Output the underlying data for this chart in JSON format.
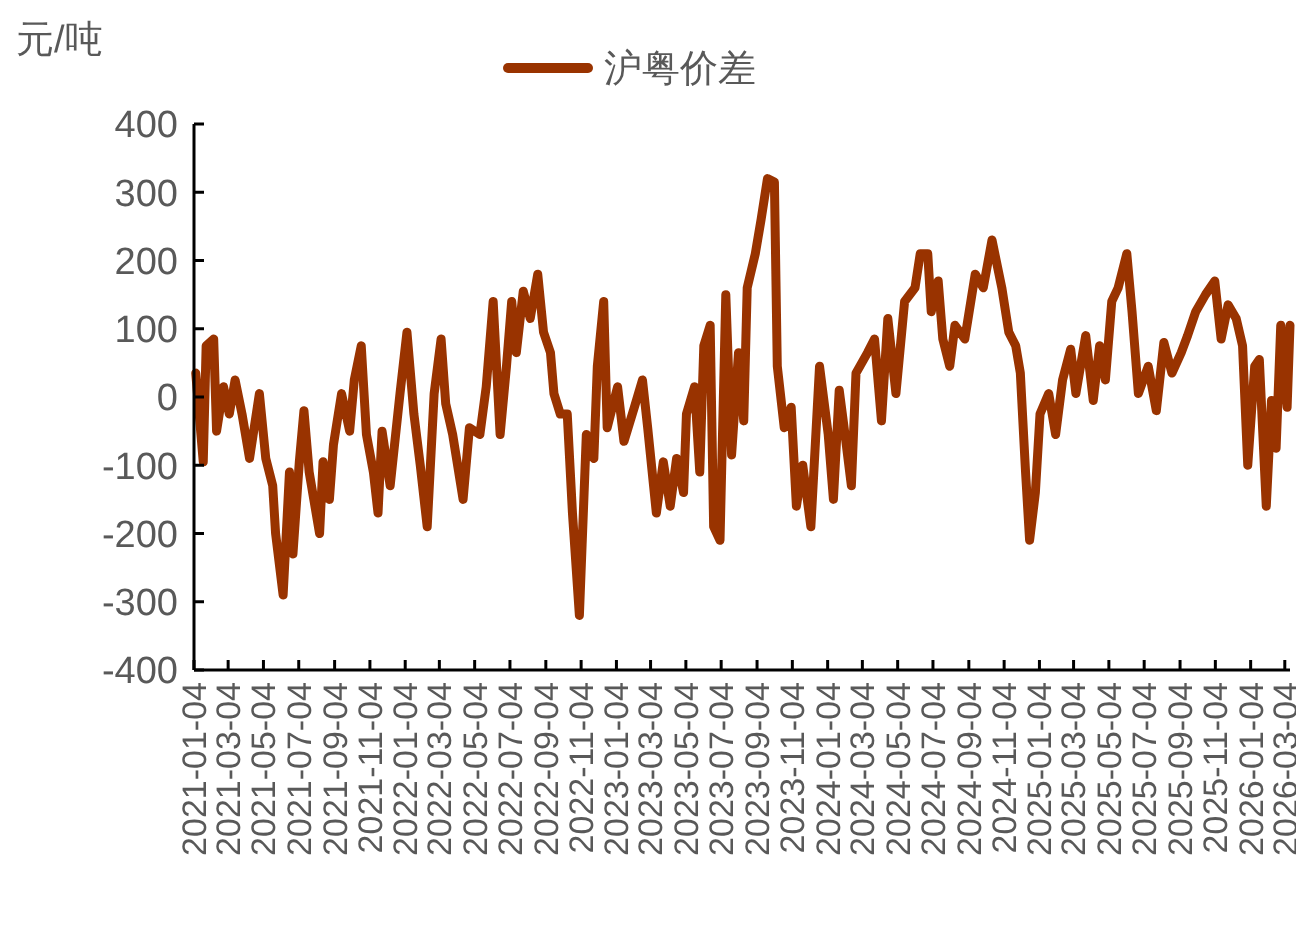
{
  "chart_data": {
    "type": "line",
    "ylabel": "元/吨",
    "legend": "top",
    "grid": false,
    "marker": "none",
    "line_style": "solid",
    "xlim": [
      "2021-01-04",
      "2026-03-13"
    ],
    "xticks": [
      "2021-01-04",
      "2021-03-04",
      "2021-05-04",
      "2021-07-04",
      "2021-09-04",
      "2021-11-04",
      "2022-01-04",
      "2022-03-04",
      "2022-05-04",
      "2022-07-04",
      "2022-09-04",
      "2022-11-04",
      "2023-01-04",
      "2023-03-04",
      "2023-05-04",
      "2023-07-04",
      "2023-09-04",
      "2023-11-04",
      "2024-01-04",
      "2024-03-04",
      "2024-05-04",
      "2024-07-04",
      "2024-09-04",
      "2024-11-04",
      "2025-01-04",
      "2025-03-04",
      "2025-05-04",
      "2025-07-04",
      "2025-09-04",
      "2025-11-04",
      "2026-01-04",
      "2026-03-04"
    ],
    "ylim": [
      -400,
      400
    ],
    "yticks": [
      -400,
      -300,
      -200,
      -100,
      0,
      100,
      200,
      300,
      400
    ],
    "x": [
      "2021-01-07",
      "2021-01-20",
      "2021-01-25",
      "2021-02-07",
      "2021-02-12",
      "2021-02-24",
      "2021-03-06",
      "2021-03-16",
      "2021-03-28",
      "2021-04-10",
      "2021-04-27",
      "2021-05-08",
      "2021-05-20",
      "2021-05-25",
      "2021-06-07",
      "2021-06-18",
      "2021-06-24",
      "2021-07-05",
      "2021-07-13",
      "2021-07-22",
      "2021-08-09",
      "2021-08-15",
      "2021-08-26",
      "2021-09-02",
      "2021-09-16",
      "2021-09-30",
      "2021-10-08",
      "2021-10-20",
      "2021-10-29",
      "2021-11-10",
      "2021-11-18",
      "2021-11-25",
      "2021-12-09",
      "2021-12-26",
      "2022-01-07",
      "2022-01-19",
      "2022-01-30",
      "2022-02-11",
      "2022-02-23",
      "2022-03-07",
      "2022-03-15",
      "2022-03-27",
      "2022-04-14",
      "2022-04-25",
      "2022-05-13",
      "2022-05-24",
      "2022-06-05",
      "2022-06-17",
      "2022-06-28",
      "2022-07-07",
      "2022-07-15",
      "2022-07-27",
      "2022-08-08",
      "2022-08-21",
      "2022-08-31",
      "2022-09-12",
      "2022-09-18",
      "2022-09-29",
      "2022-10-11",
      "2022-10-20",
      "2022-11-01",
      "2022-11-13",
      "2022-11-26",
      "2022-12-02",
      "2022-12-13",
      "2022-12-19",
      "2023-01-06",
      "2023-01-17",
      "2023-02-04",
      "2023-02-18",
      "2023-02-27",
      "2023-03-14",
      "2023-03-26",
      "2023-04-07",
      "2023-04-18",
      "2023-04-30",
      "2023-05-05",
      "2023-05-19",
      "2023-05-28",
      "2023-06-04",
      "2023-06-15",
      "2023-06-21",
      "2023-07-02",
      "2023-07-12",
      "2023-07-22",
      "2023-08-03",
      "2023-08-12",
      "2023-08-18",
      "2023-09-01",
      "2023-09-11",
      "2023-09-22",
      "2023-10-04",
      "2023-10-09",
      "2023-10-21",
      "2023-11-02",
      "2023-11-11",
      "2023-11-22",
      "2023-12-06",
      "2023-12-21",
      "2024-01-05",
      "2024-01-14",
      "2024-01-24",
      "2024-02-03",
      "2024-02-14",
      "2024-02-22",
      "2024-03-13",
      "2024-03-25",
      "2024-04-06",
      "2024-04-17",
      "2024-05-01",
      "2024-05-16",
      "2024-06-03",
      "2024-06-12",
      "2024-06-25",
      "2024-07-01",
      "2024-07-13",
      "2024-07-21",
      "2024-08-02",
      "2024-08-11",
      "2024-08-28",
      "2024-09-15",
      "2024-09-29",
      "2024-10-14",
      "2024-10-31",
      "2024-11-12",
      "2024-11-24",
      "2024-12-02",
      "2024-12-11",
      "2024-12-18",
      "2024-12-28",
      "2025-01-05",
      "2025-01-20",
      "2025-02-01",
      "2025-02-13",
      "2025-02-27",
      "2025-03-08",
      "2025-03-25",
      "2025-04-07",
      "2025-04-18",
      "2025-04-28",
      "2025-05-09",
      "2025-05-20",
      "2025-06-04",
      "2025-06-13",
      "2025-06-24",
      "2025-07-11",
      "2025-07-25",
      "2025-08-07",
      "2025-08-21",
      "2025-09-06",
      "2025-09-17",
      "2025-10-01",
      "2025-10-18",
      "2025-11-03",
      "2025-11-14",
      "2025-11-26",
      "2025-12-10",
      "2025-12-21",
      "2025-12-30",
      "2026-01-11",
      "2026-01-19",
      "2026-01-31",
      "2026-02-09",
      "2026-02-17",
      "2026-02-25",
      "2026-03-08",
      "2026-03-13"
    ],
    "series": [
      {
        "name": "沪粤价差",
        "color": "#993300",
        "values": [
          35,
          -95,
          75,
          85,
          -50,
          15,
          -25,
          25,
          -25,
          -90,
          5,
          -90,
          -130,
          -200,
          -290,
          -110,
          -230,
          -95,
          -20,
          -110,
          -200,
          -95,
          -150,
          -70,
          5,
          -50,
          25,
          75,
          -55,
          -110,
          -170,
          -50,
          -130,
          5,
          95,
          -25,
          -100,
          -190,
          5,
          85,
          -10,
          -55,
          -150,
          -45,
          -55,
          15,
          140,
          -55,
          45,
          140,
          65,
          155,
          115,
          180,
          95,
          65,
          5,
          -25,
          -25,
          -170,
          -320,
          -55,
          -90,
          45,
          140,
          -45,
          15,
          -65,
          -15,
          25,
          -45,
          -170,
          -95,
          -160,
          -90,
          -140,
          -25,
          15,
          -110,
          75,
          105,
          -190,
          -210,
          150,
          -85,
          65,
          -35,
          160,
          210,
          260,
          320,
          315,
          45,
          -45,
          -15,
          -160,
          -100,
          -190,
          45,
          -55,
          -150,
          10,
          -55,
          -130,
          35,
          65,
          85,
          -35,
          115,
          5,
          140,
          160,
          210,
          210,
          125,
          170,
          85,
          45,
          105,
          85,
          180,
          160,
          230,
          160,
          95,
          75,
          35,
          -110,
          -210,
          -140,
          -25,
          5,
          -55,
          25,
          70,
          5,
          90,
          -5,
          75,
          25,
          140,
          160,
          210,
          125,
          5,
          45,
          -20,
          80,
          35,
          65,
          90,
          125,
          150,
          170,
          85,
          135,
          115,
          75,
          -100,
          45,
          55,
          -160,
          -5,
          -75,
          105,
          -15,
          105
        ]
      }
    ]
  }
}
